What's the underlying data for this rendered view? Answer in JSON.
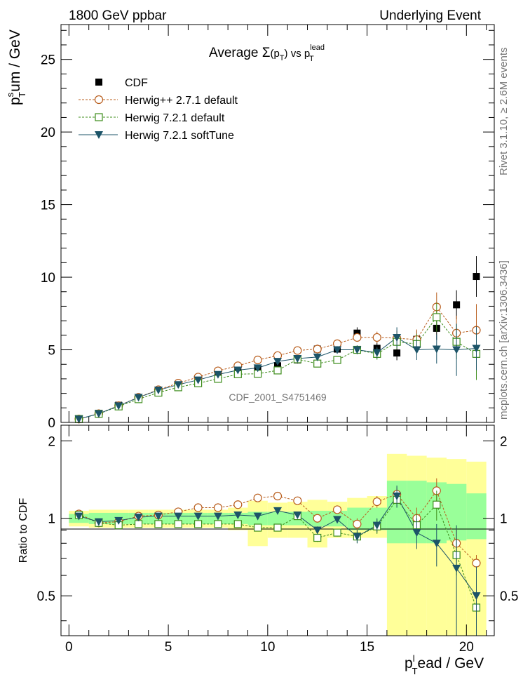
{
  "header": {
    "left": "1800 GeV ppbar",
    "right": "Underlying Event"
  },
  "side_labels": {
    "rivet": "Rivet 3.1.10, ≥ 2.6M events",
    "mcplots": "mcplots.cern.ch [arXiv:1306.3436]"
  },
  "chart_data": [
    {
      "type": "scatter",
      "title_parts": {
        "a": "Average ",
        "sigma": "Σ",
        "b": "(p",
        "sub_T": "T",
        "c": ")",
        "d": " vs p",
        "sup": "lead",
        "sub2": "T"
      },
      "ylabel_parts": {
        "p": "p",
        "sup": "s",
        "sub": "T",
        "rest": "um / GeV"
      },
      "watermark": "CDF_2001_S4751469",
      "ylim": [
        0,
        27.4
      ],
      "yticks": [
        0,
        5,
        10,
        15,
        20,
        25
      ],
      "legend": [
        {
          "key": "cdf",
          "label": "CDF",
          "color": "#000000",
          "marker": "square-filled"
        },
        {
          "key": "hwpp",
          "label": "Herwig++ 2.7.1 default",
          "color": "#b85c1b",
          "marker": "circle-open"
        },
        {
          "key": "h7def",
          "label": "Herwig 7.2.1 default",
          "color": "#3c8c1a",
          "marker": "square-open"
        },
        {
          "key": "h7soft",
          "label": "Herwig 7.2.1 softTune",
          "color": "#1c5468",
          "marker": "triangle-down-filled"
        }
      ],
      "x": [
        0.5,
        1.5,
        2.5,
        3.5,
        4.5,
        5.5,
        6.5,
        7.5,
        8.5,
        9.5,
        10.5,
        11.5,
        12.5,
        13.5,
        14.5,
        15.5,
        16.5,
        17.5,
        18.5,
        19.5,
        20.5
      ],
      "series": [
        {
          "key": "cdf",
          "values": [
            0.22,
            0.62,
            1.18,
            1.7,
            2.18,
            2.55,
            2.85,
            3.22,
            3.5,
            3.68,
            3.9,
            4.3,
            5.05,
            5.05,
            6.15,
            5.1,
            4.78,
            5.72,
            6.48,
            8.1,
            10.05
          ],
          "err": [
            0.03,
            0.05,
            0.08,
            0.1,
            0.12,
            0.13,
            0.15,
            0.16,
            0.18,
            0.2,
            0.22,
            0.25,
            0.3,
            0.32,
            0.4,
            0.4,
            0.5,
            0.6,
            0.8,
            1.0,
            1.4
          ]
        },
        {
          "key": "hwpp",
          "values": [
            0.23,
            0.6,
            1.15,
            1.73,
            2.25,
            2.7,
            3.12,
            3.55,
            3.9,
            4.3,
            4.6,
            4.95,
            5.05,
            5.42,
            5.85,
            5.85,
            5.8,
            5.7,
            7.95,
            6.15,
            6.35
          ],
          "err": [
            0.01,
            0.02,
            0.03,
            0.04,
            0.05,
            0.06,
            0.07,
            0.08,
            0.1,
            0.12,
            0.14,
            0.16,
            0.2,
            0.25,
            0.3,
            0.4,
            0.5,
            0.7,
            1.0,
            1.2,
            1.8
          ]
        },
        {
          "key": "h7def",
          "values": [
            0.23,
            0.59,
            1.1,
            1.6,
            2.05,
            2.42,
            2.7,
            3.0,
            3.32,
            3.35,
            3.58,
            4.35,
            4.05,
            4.3,
            5.0,
            4.72,
            5.55,
            5.4,
            7.25,
            5.55,
            4.72
          ],
          "err": [
            0.01,
            0.02,
            0.03,
            0.04,
            0.05,
            0.06,
            0.07,
            0.08,
            0.1,
            0.12,
            0.14,
            0.16,
            0.2,
            0.25,
            0.3,
            0.4,
            0.5,
            0.7,
            1.0,
            1.2,
            1.8
          ]
        },
        {
          "key": "h7soft",
          "values": [
            0.23,
            0.6,
            1.14,
            1.72,
            2.22,
            2.6,
            2.92,
            3.3,
            3.6,
            3.75,
            4.2,
            4.4,
            4.5,
            5.0,
            5.0,
            4.8,
            5.85,
            5.0,
            5.05,
            5.0,
            5.1
          ],
          "err": [
            0.01,
            0.02,
            0.03,
            0.04,
            0.05,
            0.06,
            0.07,
            0.08,
            0.1,
            0.12,
            0.14,
            0.16,
            0.2,
            0.25,
            0.3,
            0.4,
            0.7,
            0.7,
            1.0,
            1.8,
            1.5
          ]
        }
      ]
    },
    {
      "type": "scatter",
      "ylabel": "Ratio to CDF",
      "xlabel_parts": {
        "p": "p",
        "sup": "l",
        "sub": "T",
        "rest": "ead / GeV"
      },
      "xlim": [
        -0.4,
        21.4
      ],
      "xticks": [
        0,
        5,
        10,
        15,
        20
      ],
      "ylim": [
        0.35,
        2.3
      ],
      "yticks": [
        0.5,
        1,
        2
      ],
      "reference_line": 1,
      "band_edges": [
        0,
        1,
        2,
        3,
        4,
        5,
        6,
        7,
        8,
        9,
        10,
        11,
        12,
        13,
        14,
        15,
        16,
        17,
        18,
        19,
        20,
        21
      ],
      "band_inner": [
        [
          0.96,
          1.04
        ],
        [
          0.95,
          1.05
        ],
        [
          0.95,
          1.05
        ],
        [
          0.95,
          1.05
        ],
        [
          0.95,
          1.05
        ],
        [
          0.95,
          1.05
        ],
        [
          0.95,
          1.05
        ],
        [
          0.95,
          1.05
        ],
        [
          0.95,
          1.05
        ],
        [
          0.94,
          1.06
        ],
        [
          0.94,
          1.06
        ],
        [
          0.94,
          1.06
        ],
        [
          0.93,
          1.07
        ],
        [
          0.93,
          1.07
        ],
        [
          0.9,
          1.1
        ],
        [
          0.9,
          1.1
        ],
        [
          0.8,
          1.4
        ],
        [
          0.8,
          1.4
        ],
        [
          0.8,
          1.38
        ],
        [
          0.82,
          1.36
        ],
        [
          0.83,
          1.25
        ]
      ],
      "band_outer": [
        [
          0.93,
          1.07
        ],
        [
          0.92,
          1.08
        ],
        [
          0.92,
          1.08
        ],
        [
          0.92,
          1.08
        ],
        [
          0.92,
          1.08
        ],
        [
          0.92,
          1.08
        ],
        [
          0.92,
          1.08
        ],
        [
          0.92,
          1.08
        ],
        [
          0.9,
          1.1
        ],
        [
          0.78,
          1.17
        ],
        [
          0.84,
          1.15
        ],
        [
          0.84,
          1.16
        ],
        [
          0.77,
          1.18
        ],
        [
          0.84,
          1.16
        ],
        [
          0.84,
          1.2
        ],
        [
          0.84,
          1.22
        ],
        [
          0.35,
          1.78
        ],
        [
          0.35,
          1.75
        ],
        [
          0.35,
          1.72
        ],
        [
          0.35,
          1.7
        ],
        [
          0.35,
          1.66
        ]
      ],
      "series": [
        {
          "key": "hwpp",
          "values": [
            1.04,
            0.96,
            0.97,
            1.02,
            1.03,
            1.06,
            1.1,
            1.1,
            1.13,
            1.2,
            1.22,
            1.17,
            1.0,
            1.08,
            0.95,
            1.16,
            1.24,
            1.0,
            1.28,
            0.8,
            0.67
          ],
          "err": [
            0.01,
            0.01,
            0.01,
            0.01,
            0.01,
            0.01,
            0.01,
            0.01,
            0.01,
            0.02,
            0.02,
            0.02,
            0.03,
            0.03,
            0.05,
            0.06,
            0.08,
            0.1,
            0.15,
            0.12,
            0.05
          ]
        },
        {
          "key": "h7def",
          "values": [
            1.03,
            0.96,
            0.94,
            0.95,
            0.95,
            0.95,
            0.95,
            0.95,
            0.95,
            0.92,
            0.92,
            1.02,
            0.84,
            0.88,
            0.85,
            0.93,
            1.18,
            0.94,
            1.13,
            0.72,
            0.45
          ],
          "err": [
            0.01,
            0.01,
            0.01,
            0.01,
            0.01,
            0.01,
            0.01,
            0.01,
            0.01,
            0.02,
            0.02,
            0.02,
            0.03,
            0.03,
            0.05,
            0.06,
            0.08,
            0.1,
            0.15,
            0.12,
            0.05
          ]
        },
        {
          "key": "h7soft",
          "values": [
            1.02,
            0.97,
            0.98,
            1.01,
            1.02,
            1.02,
            1.02,
            1.02,
            1.03,
            1.02,
            1.07,
            1.03,
            0.9,
            0.99,
            0.85,
            0.94,
            1.22,
            0.88,
            0.8,
            0.64,
            0.5
          ],
          "err": [
            0.01,
            0.01,
            0.01,
            0.01,
            0.01,
            0.01,
            0.01,
            0.01,
            0.01,
            0.02,
            0.02,
            0.02,
            0.03,
            0.03,
            0.05,
            0.06,
            0.12,
            0.12,
            0.15,
            0.3,
            0.15
          ]
        }
      ]
    }
  ]
}
